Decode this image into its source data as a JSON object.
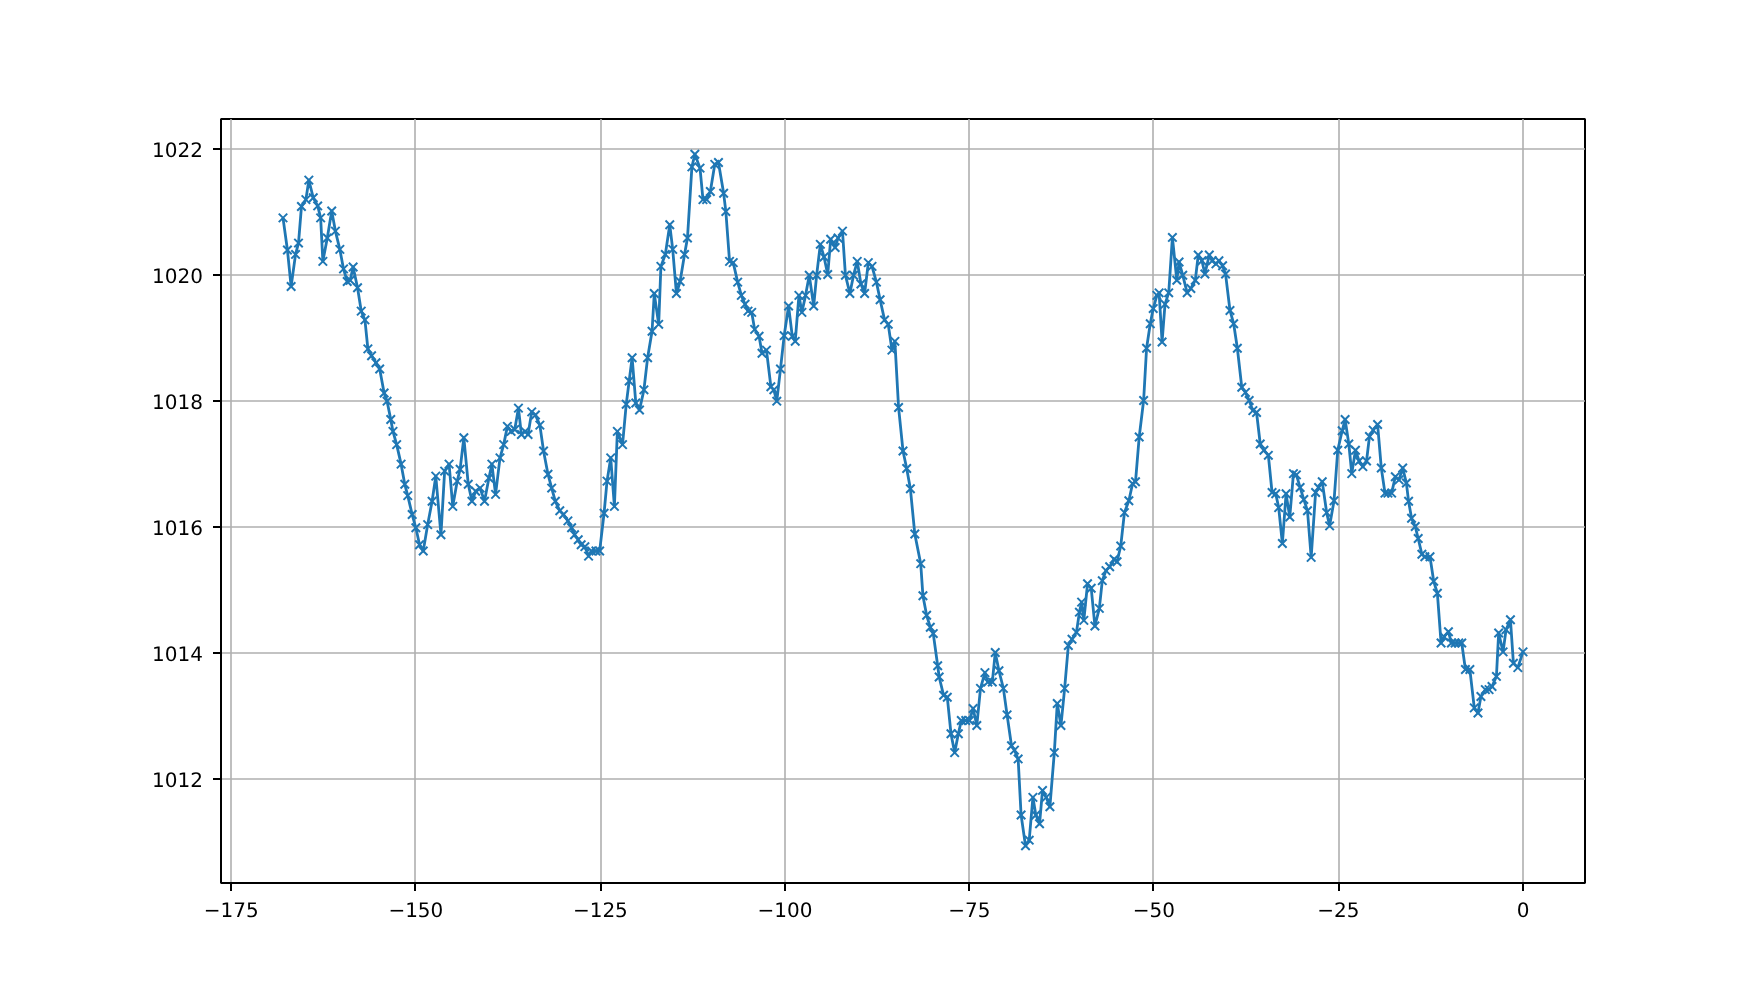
{
  "chart_data": {
    "type": "line",
    "marker": "cross",
    "line_style": "solid",
    "grid": true,
    "xlim": [
      -176.4,
      8.4
    ],
    "ylim": [
      1010.35,
      1022.48
    ],
    "xticks": [
      -175,
      -150,
      -125,
      -100,
      -75,
      -50,
      -25,
      0
    ],
    "yticks": [
      1012,
      1014,
      1016,
      1018,
      1020,
      1022
    ],
    "series": [
      {
        "color": "#1f77b4",
        "x": [
          -168.0,
          -167.4,
          -166.9,
          -166.3,
          -165.9,
          -165.5,
          -164.9,
          -164.5,
          -163.9,
          -163.3,
          -162.9,
          -162.6,
          -162.0,
          -161.4,
          -160.9,
          -160.3,
          -159.8,
          -159.3,
          -158.9,
          -158.5,
          -157.9,
          -157.4,
          -156.9,
          -156.5,
          -156.0,
          -155.4,
          -154.9,
          -154.3,
          -153.9,
          -153.4,
          -153.1,
          -152.6,
          -152.0,
          -151.5,
          -151.1,
          -150.5,
          -150.0,
          -149.5,
          -149.0,
          -148.4,
          -147.8,
          -147.3,
          -146.6,
          -146.1,
          -145.5,
          -145.0,
          -144.4,
          -144.0,
          -143.5,
          -142.9,
          -142.4,
          -141.9,
          -141.3,
          -140.7,
          -140.1,
          -139.7,
          -139.2,
          -138.6,
          -138.1,
          -137.6,
          -137.1,
          -136.6,
          -136.1,
          -135.7,
          -135.2,
          -134.8,
          -134.3,
          -133.8,
          -133.2,
          -132.7,
          -132.1,
          -131.6,
          -131.1,
          -130.5,
          -130.0,
          -129.4,
          -128.9,
          -128.5,
          -128.0,
          -127.6,
          -127.1,
          -126.6,
          -126.2,
          -125.6,
          -125.1,
          -124.5,
          -124.1,
          -123.6,
          -123.1,
          -122.7,
          -122.0,
          -121.5,
          -121.1,
          -120.7,
          -120.2,
          -119.7,
          -119.1,
          -118.6,
          -118.0,
          -117.7,
          -117.1,
          -116.8,
          -116.2,
          -115.6,
          -115.2,
          -114.7,
          -114.2,
          -113.6,
          -113.2,
          -112.6,
          -112.2,
          -111.5,
          -111.1,
          -110.6,
          -110.1,
          -109.5,
          -109.0,
          -108.3,
          -108.0,
          -107.5,
          -107.0,
          -106.4,
          -105.9,
          -105.4,
          -105.0,
          -104.5,
          -104.1,
          -103.5,
          -103.1,
          -102.5,
          -101.9,
          -101.5,
          -101.1,
          -100.6,
          -100.1,
          -99.5,
          -99.0,
          -98.6,
          -98.1,
          -97.7,
          -97.2,
          -96.7,
          -96.1,
          -95.7,
          -95.2,
          -94.7,
          -94.2,
          -93.8,
          -93.2,
          -92.8,
          -92.2,
          -91.8,
          -91.2,
          -90.7,
          -90.2,
          -89.7,
          -89.2,
          -88.7,
          -88.2,
          -87.6,
          -87.1,
          -86.5,
          -86.0,
          -85.5,
          -85.1,
          -84.6,
          -84.0,
          -83.5,
          -83.0,
          -82.4,
          -81.6,
          -81.3,
          -80.8,
          -80.3,
          -79.9,
          -79.3,
          -79.1,
          -78.5,
          -78.0,
          -77.5,
          -77.0,
          -76.5,
          -76.1,
          -75.5,
          -75.0,
          -74.5,
          -74.0,
          -73.5,
          -72.9,
          -72.5,
          -71.9,
          -71.5,
          -71.0,
          -70.4,
          -69.9,
          -69.3,
          -68.9,
          -68.4,
          -68.0,
          -67.4,
          -66.9,
          -66.4,
          -66.0,
          -65.5,
          -65.1,
          -64.6,
          -64.1,
          -63.5,
          -63.1,
          -62.6,
          -62.1,
          -61.6,
          -61.1,
          -60.5,
          -60.1,
          -59.8,
          -59.5,
          -59.0,
          -58.5,
          -58.0,
          -57.4,
          -57.0,
          -56.5,
          -56.0,
          -55.4,
          -55.0,
          -54.5,
          -54.0,
          -53.4,
          -52.9,
          -52.5,
          -52.0,
          -51.4,
          -51.0,
          -50.5,
          -50.1,
          -49.6,
          -49.3,
          -48.9,
          -48.5,
          -48.0,
          -47.5,
          -46.9,
          -46.6,
          -46.1,
          -45.5,
          -45.0,
          -44.4,
          -44.0,
          -43.5,
          -43.1,
          -42.5,
          -42.1,
          -41.6,
          -41.2,
          -40.7,
          -40.3,
          -39.7,
          -39.2,
          -38.7,
          -38.1,
          -37.6,
          -37.1,
          -36.6,
          -36.1,
          -35.6,
          -35.1,
          -34.5,
          -34.0,
          -33.5,
          -33.1,
          -32.6,
          -32.1,
          -31.6,
          -31.1,
          -30.7,
          -30.2,
          -29.7,
          -29.2,
          -28.7,
          -28.1,
          -27.7,
          -27.2,
          -26.6,
          -26.2,
          -25.6,
          -25.1,
          -24.5,
          -24.1,
          -23.6,
          -23.2,
          -22.7,
          -22.2,
          -21.7,
          -21.2,
          -20.8,
          -20.3,
          -19.7,
          -19.2,
          -18.7,
          -18.3,
          -17.8,
          -17.3,
          -16.8,
          -16.3,
          -15.8,
          -15.5,
          -15.1,
          -14.6,
          -14.2,
          -13.7,
          -13.3,
          -12.6,
          -12.1,
          -11.6,
          -11.1,
          -10.7,
          -10.1,
          -9.7,
          -9.2,
          -8.7,
          -8.3,
          -7.8,
          -7.2,
          -6.6,
          -6.1,
          -5.7,
          -5.1,
          -4.6,
          -4.2,
          -3.6,
          -3.3,
          -2.7,
          -2.3,
          -1.7,
          -1.3,
          -0.7,
          0.0
        ],
        "values": [
          1020.91,
          1020.4,
          1019.82,
          1020.33,
          1020.51,
          1021.09,
          1021.2,
          1021.51,
          1021.23,
          1021.1,
          1020.91,
          1020.22,
          1020.59,
          1021.02,
          1020.7,
          1020.41,
          1020.1,
          1019.9,
          1019.92,
          1020.13,
          1019.8,
          1019.43,
          1019.29,
          1018.83,
          1018.72,
          1018.61,
          1018.51,
          1018.13,
          1018.0,
          1017.71,
          1017.52,
          1017.31,
          1017.0,
          1016.68,
          1016.5,
          1016.2,
          1015.99,
          1015.72,
          1015.62,
          1016.04,
          1016.41,
          1016.81,
          1015.88,
          1016.89,
          1017.0,
          1016.33,
          1016.73,
          1016.92,
          1017.42,
          1016.68,
          1016.41,
          1016.57,
          1016.62,
          1016.41,
          1016.78,
          1017.0,
          1016.52,
          1017.1,
          1017.31,
          1017.6,
          1017.52,
          1017.55,
          1017.89,
          1017.47,
          1017.52,
          1017.47,
          1017.83,
          1017.78,
          1017.62,
          1017.21,
          1016.84,
          1016.62,
          1016.41,
          1016.26,
          1016.2,
          1016.1,
          1015.99,
          1015.88,
          1015.8,
          1015.72,
          1015.69,
          1015.54,
          1015.62,
          1015.62,
          1015.62,
          1016.22,
          1016.73,
          1017.1,
          1016.33,
          1017.52,
          1017.31,
          1017.95,
          1018.32,
          1018.69,
          1017.97,
          1017.86,
          1018.18,
          1018.69,
          1019.11,
          1019.71,
          1019.22,
          1020.14,
          1020.33,
          1020.8,
          1020.41,
          1019.71,
          1019.9,
          1020.33,
          1020.59,
          1021.72,
          1021.92,
          1021.7,
          1021.2,
          1021.2,
          1021.33,
          1021.76,
          1021.79,
          1021.3,
          1021.01,
          1020.22,
          1020.2,
          1019.89,
          1019.68,
          1019.54,
          1019.43,
          1019.41,
          1019.14,
          1019.03,
          1018.76,
          1018.81,
          1018.23,
          1018.18,
          1018.0,
          1018.51,
          1019.04,
          1019.51,
          1019.03,
          1018.95,
          1019.68,
          1019.41,
          1019.68,
          1020.0,
          1019.51,
          1020.0,
          1020.49,
          1020.29,
          1020.01,
          1020.57,
          1020.44,
          1020.59,
          1020.7,
          1020.0,
          1019.71,
          1020.0,
          1020.22,
          1019.86,
          1019.71,
          1020.2,
          1020.14,
          1019.89,
          1019.61,
          1019.29,
          1019.22,
          1018.81,
          1018.95,
          1017.9,
          1017.21,
          1016.93,
          1016.61,
          1015.89,
          1015.42,
          1014.91,
          1014.6,
          1014.41,
          1014.31,
          1013.8,
          1013.62,
          1013.33,
          1013.3,
          1012.72,
          1012.42,
          1012.72,
          1012.93,
          1012.93,
          1012.93,
          1013.12,
          1012.85,
          1013.44,
          1013.69,
          1013.54,
          1013.54,
          1014.01,
          1013.72,
          1013.44,
          1013.02,
          1012.53,
          1012.46,
          1012.32,
          1011.43,
          1010.94,
          1011.03,
          1011.71,
          1011.43,
          1011.29,
          1011.82,
          1011.71,
          1011.56,
          1012.42,
          1013.2,
          1012.85,
          1013.44,
          1014.12,
          1014.22,
          1014.33,
          1014.65,
          1014.81,
          1014.52,
          1015.1,
          1015.03,
          1014.43,
          1014.71,
          1015.15,
          1015.31,
          1015.37,
          1015.49,
          1015.45,
          1015.7,
          1016.23,
          1016.42,
          1016.69,
          1016.72,
          1017.43,
          1018.01,
          1018.84,
          1019.23,
          1019.47,
          1019.68,
          1019.72,
          1018.94,
          1019.54,
          1019.72,
          1020.6,
          1019.92,
          1020.21,
          1020.0,
          1019.72,
          1019.79,
          1019.92,
          1020.32,
          1020.23,
          1020.02,
          1020.32,
          1020.23,
          1020.18,
          1020.23,
          1020.15,
          1020.02,
          1019.44,
          1019.23,
          1018.84,
          1018.22,
          1018.14,
          1018.01,
          1017.85,
          1017.82,
          1017.32,
          1017.22,
          1017.14,
          1016.55,
          1016.53,
          1016.31,
          1015.74,
          1016.53,
          1016.16,
          1016.85,
          1016.83,
          1016.63,
          1016.44,
          1016.26,
          1015.52,
          1016.55,
          1016.63,
          1016.72,
          1016.23,
          1016.02,
          1016.42,
          1017.22,
          1017.53,
          1017.71,
          1017.32,
          1016.85,
          1017.22,
          1017.05,
          1016.96,
          1017.05,
          1017.44,
          1017.54,
          1017.63,
          1016.94,
          1016.54,
          1016.54,
          1016.54,
          1016.8,
          1016.75,
          1016.94,
          1016.7,
          1016.41,
          1016.14,
          1016.01,
          1015.82,
          1015.57,
          1015.53,
          1015.53,
          1015.14,
          1014.95,
          1014.16,
          1014.26,
          1014.34,
          1014.16,
          1014.16,
          1014.16,
          1014.16,
          1013.74,
          1013.74,
          1013.13,
          1013.05,
          1013.31,
          1013.42,
          1013.42,
          1013.47,
          1013.63,
          1014.32,
          1014.02,
          1014.37,
          1014.53,
          1013.84,
          1013.77,
          1014.02
        ]
      }
    ]
  }
}
